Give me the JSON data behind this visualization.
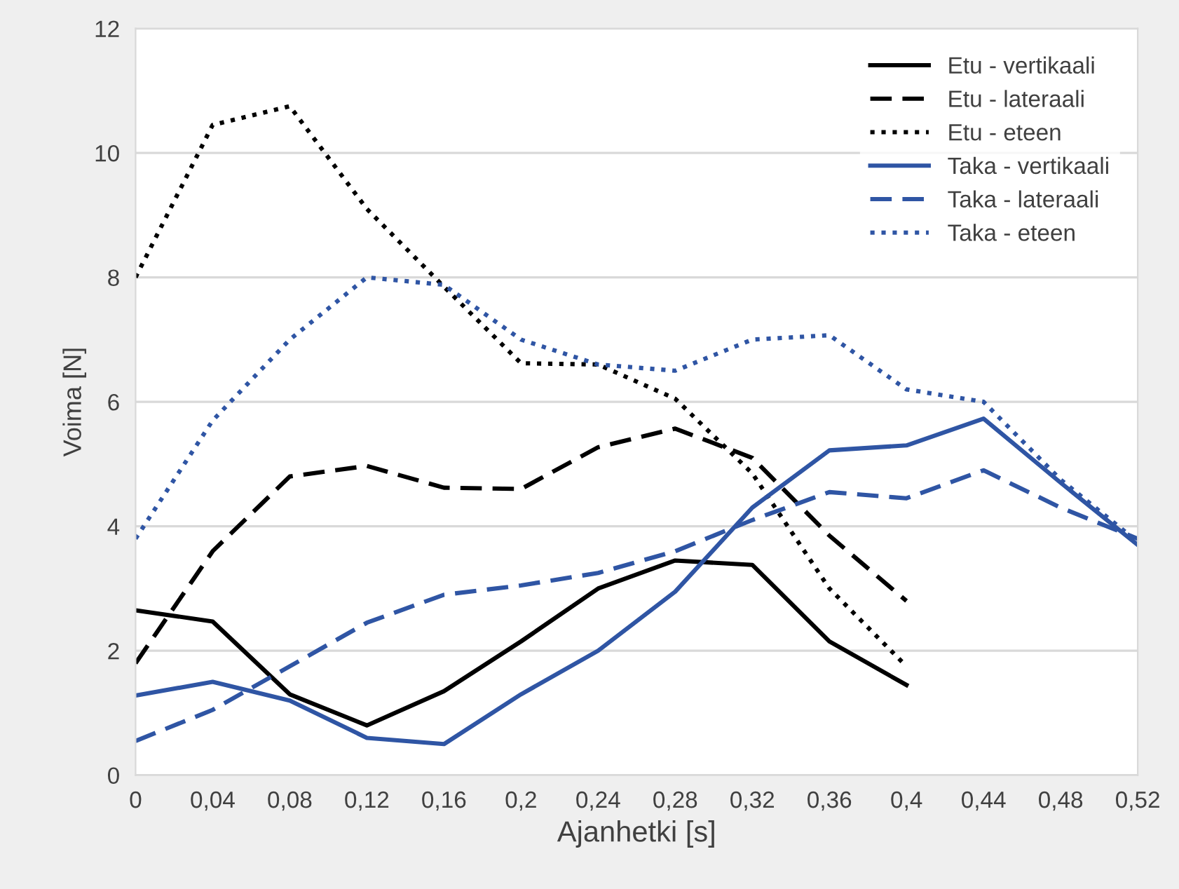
{
  "chart_data": {
    "type": "line",
    "xlabel": "Ajanhetki [s]",
    "ylabel": "Voima [N]",
    "categories": [
      "0",
      "0,04",
      "0,08",
      "0,12",
      "0,16",
      "0,2",
      "0,24",
      "0,28",
      "0,32",
      "0,36",
      "0,4",
      "0,44",
      "0,48",
      "0,52"
    ],
    "ylim": [
      0,
      12
    ],
    "yticks": [
      0,
      2,
      4,
      6,
      8,
      10,
      12
    ],
    "grid": "y",
    "legend": "top right",
    "marker": "none",
    "series": [
      {
        "name": "Etu - vertikaali",
        "color": "#000000",
        "line_style": "solid",
        "values": [
          2.65,
          2.47,
          1.3,
          0.8,
          1.35,
          2.15,
          3.0,
          3.45,
          3.38,
          2.15,
          1.45,
          null,
          null,
          null
        ]
      },
      {
        "name": "Etu - lateraali",
        "color": "#000000",
        "line_style": "dashed",
        "values": [
          1.8,
          3.6,
          4.8,
          4.97,
          4.62,
          4.6,
          5.27,
          5.57,
          5.1,
          3.85,
          2.8,
          null,
          null,
          null
        ]
      },
      {
        "name": "Etu - eteen",
        "color": "#000000",
        "line_style": "dotted",
        "values": [
          8.0,
          10.45,
          10.75,
          9.1,
          7.85,
          6.62,
          6.6,
          6.05,
          4.85,
          3.0,
          1.75,
          null,
          null,
          null
        ]
      },
      {
        "name": "Taka - vertikaali",
        "color": "#2f55a4",
        "line_style": "solid",
        "values": [
          1.28,
          1.5,
          1.2,
          0.6,
          0.5,
          1.3,
          2.0,
          2.95,
          4.3,
          5.22,
          5.3,
          5.73,
          4.7,
          3.7
        ]
      },
      {
        "name": "Taka - lateraali",
        "color": "#2f55a4",
        "line_style": "dashed",
        "values": [
          0.55,
          1.05,
          1.75,
          2.45,
          2.9,
          3.05,
          3.25,
          3.6,
          4.1,
          4.55,
          4.45,
          4.9,
          4.3,
          3.8
        ]
      },
      {
        "name": "Taka - eteen",
        "color": "#2f55a4",
        "line_style": "dotted",
        "values": [
          3.8,
          5.7,
          7.0,
          8.0,
          7.88,
          7.0,
          6.6,
          6.5,
          7.0,
          7.07,
          6.2,
          6.0,
          4.75,
          3.75
        ]
      }
    ]
  }
}
